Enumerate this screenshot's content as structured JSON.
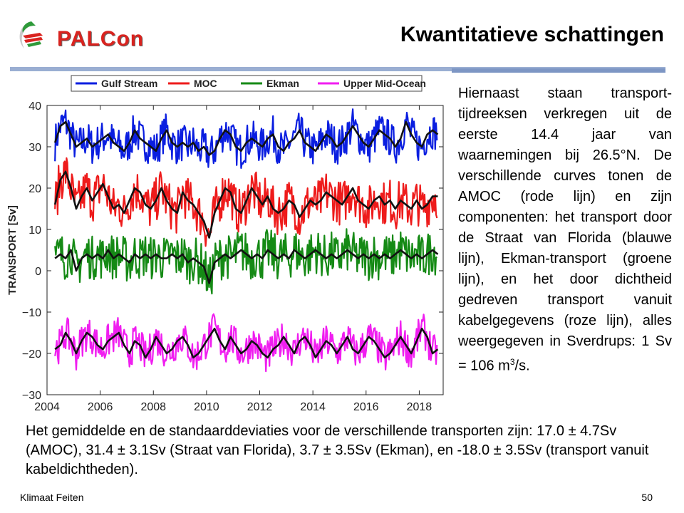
{
  "logo": {
    "text": "PALCon"
  },
  "slide": {
    "title": "Kwantitatieve schattingen",
    "side_text_main": "Hiernaast staan transport-tijdreeksen verkregen uit de eerste 14.4 jaar van waarnemingen bij 26.5°N. De verschillende curves tonen de AMOC (rode lijn) en zijn componenten: het transport door de Straat van Florida (blauwe lijn), Ekman-transport (groene lijn), en het door dichtheid gedreven transport vanuit kabelgegevens (roze lijn), alles weergegeven in Sverdrups: 1 Sv = 106 m",
    "side_text_sup": "3",
    "side_text_end": "/s.",
    "bottom_text": "Het gemiddelde en de standaarddeviaties voor de verschillende transporten zijn: 17.0 ± 4.7Sv (AMOC), 31.4 ± 3.1Sv (Straat van Florida), 3.7 ± 3.5Sv (Ekman), en -18.0 ± 3.5Sv (transport vanuit kabeldichtheden).",
    "footer_left": "Klimaat Feiten",
    "footer_right": "50"
  },
  "chart_data": {
    "type": "line",
    "ylabel": "TRANSPORT [Sv]",
    "xlabel": "",
    "xlim": [
      2004,
      2018.9
    ],
    "ylim": [
      -30,
      40
    ],
    "xticks": [
      "2004",
      "2006",
      "2008",
      "2010",
      "2012",
      "2014",
      "2016",
      "2018"
    ],
    "yticks": [
      "40",
      "30",
      "20",
      "10",
      "0",
      "−10",
      "−20",
      "−30"
    ],
    "legend_position": "top",
    "series": [
      {
        "name": "Gulf Stream",
        "color": "#0a1ee0",
        "x": [
          2004.3,
          2004.5,
          2004.7,
          2004.9,
          2005.1,
          2005.3,
          2005.5,
          2005.7,
          2005.9,
          2006.1,
          2006.3,
          2006.5,
          2006.7,
          2006.9,
          2007.1,
          2007.3,
          2007.5,
          2007.7,
          2007.9,
          2008.1,
          2008.3,
          2008.5,
          2008.7,
          2008.9,
          2009.1,
          2009.3,
          2009.5,
          2009.7,
          2009.9,
          2010.1,
          2010.3,
          2010.5,
          2010.7,
          2010.9,
          2011.1,
          2011.3,
          2011.5,
          2011.7,
          2011.9,
          2012.1,
          2012.3,
          2012.5,
          2012.7,
          2012.9,
          2013.1,
          2013.3,
          2013.5,
          2013.7,
          2013.9,
          2014.1,
          2014.3,
          2014.5,
          2014.7,
          2014.9,
          2015.1,
          2015.3,
          2015.5,
          2015.7,
          2015.9,
          2016.1,
          2016.3,
          2016.5,
          2016.7,
          2016.9,
          2017.1,
          2017.3,
          2017.5,
          2017.7,
          2017.9,
          2018.1,
          2018.3,
          2018.5,
          2018.7
        ],
        "values": [
          31,
          35,
          36,
          33,
          30,
          31,
          32,
          30,
          31,
          32,
          33,
          31,
          30,
          29,
          31,
          34,
          32,
          31,
          30,
          29,
          32,
          34,
          31,
          30,
          31,
          30,
          31,
          29,
          30,
          28,
          29,
          32,
          34,
          33,
          30,
          29,
          31,
          32,
          31,
          30,
          32,
          33,
          30,
          29,
          31,
          32,
          34,
          31,
          30,
          29,
          31,
          33,
          32,
          30,
          31,
          33,
          35,
          33,
          31,
          30,
          32,
          34,
          33,
          32,
          30,
          32,
          36,
          33,
          31,
          30,
          33,
          34,
          33
        ]
      },
      {
        "name": "MOC",
        "color": "#ee1b1b",
        "x": [
          2004.3,
          2004.5,
          2004.7,
          2004.9,
          2005.1,
          2005.3,
          2005.5,
          2005.7,
          2005.9,
          2006.1,
          2006.3,
          2006.5,
          2006.7,
          2006.9,
          2007.1,
          2007.3,
          2007.5,
          2007.7,
          2007.9,
          2008.1,
          2008.3,
          2008.5,
          2008.7,
          2008.9,
          2009.1,
          2009.3,
          2009.5,
          2009.7,
          2009.9,
          2010.1,
          2010.3,
          2010.5,
          2010.7,
          2010.9,
          2011.1,
          2011.3,
          2011.5,
          2011.7,
          2011.9,
          2012.1,
          2012.3,
          2012.5,
          2012.7,
          2012.9,
          2013.1,
          2013.3,
          2013.5,
          2013.7,
          2013.9,
          2014.1,
          2014.3,
          2014.5,
          2014.7,
          2014.9,
          2015.1,
          2015.3,
          2015.5,
          2015.7,
          2015.9,
          2016.1,
          2016.3,
          2016.5,
          2016.7,
          2016.9,
          2017.1,
          2017.3,
          2017.5,
          2017.7,
          2017.9,
          2018.1,
          2018.3,
          2018.5,
          2018.7
        ],
        "values": [
          16,
          22,
          24,
          20,
          15,
          18,
          20,
          17,
          19,
          21,
          18,
          15,
          16,
          14,
          17,
          20,
          19,
          16,
          15,
          17,
          20,
          17,
          15,
          14,
          19,
          17,
          16,
          14,
          12,
          8,
          14,
          17,
          20,
          19,
          15,
          14,
          17,
          20,
          18,
          16,
          18,
          15,
          14,
          15,
          17,
          16,
          13,
          15,
          17,
          16,
          17,
          19,
          18,
          17,
          16,
          18,
          20,
          17,
          16,
          15,
          17,
          18,
          16,
          17,
          15,
          17,
          16,
          15,
          17,
          15,
          16,
          18,
          18
        ]
      },
      {
        "name": "Ekman",
        "color": "#158a15",
        "x": [
          2004.3,
          2004.5,
          2004.7,
          2004.9,
          2005.1,
          2005.3,
          2005.5,
          2005.7,
          2005.9,
          2006.1,
          2006.3,
          2006.5,
          2006.7,
          2006.9,
          2007.1,
          2007.3,
          2007.5,
          2007.7,
          2007.9,
          2008.1,
          2008.3,
          2008.5,
          2008.7,
          2008.9,
          2009.1,
          2009.3,
          2009.5,
          2009.7,
          2009.9,
          2010.1,
          2010.3,
          2010.5,
          2010.7,
          2010.9,
          2011.1,
          2011.3,
          2011.5,
          2011.7,
          2011.9,
          2012.1,
          2012.3,
          2012.5,
          2012.7,
          2012.9,
          2013.1,
          2013.3,
          2013.5,
          2013.7,
          2013.9,
          2014.1,
          2014.3,
          2014.5,
          2014.7,
          2014.9,
          2015.1,
          2015.3,
          2015.5,
          2015.7,
          2015.9,
          2016.1,
          2016.3,
          2016.5,
          2016.7,
          2016.9,
          2017.1,
          2017.3,
          2017.5,
          2017.7,
          2017.9,
          2018.1,
          2018.3,
          2018.5,
          2018.7
        ],
        "values": [
          3,
          4,
          3,
          5,
          0,
          3,
          4,
          3,
          4,
          3,
          5,
          3,
          4,
          3,
          2,
          4,
          3,
          4,
          3,
          4,
          3,
          3,
          4,
          3,
          4,
          2,
          3,
          2,
          1,
          -3,
          2,
          3,
          4,
          3,
          4,
          5,
          4,
          3,
          4,
          3,
          5,
          4,
          3,
          4,
          3,
          5,
          4,
          3,
          4,
          5,
          4,
          3,
          4,
          3,
          4,
          5,
          4,
          3,
          4,
          3,
          4,
          3,
          4,
          3,
          4,
          5,
          4,
          3,
          4,
          3,
          4,
          5,
          4
        ]
      },
      {
        "name": "Upper Mid-Ocean",
        "color": "#f01ef0",
        "x": [
          2004.3,
          2004.5,
          2004.7,
          2004.9,
          2005.1,
          2005.3,
          2005.5,
          2005.7,
          2005.9,
          2006.1,
          2006.3,
          2006.5,
          2006.7,
          2006.9,
          2007.1,
          2007.3,
          2007.5,
          2007.7,
          2007.9,
          2008.1,
          2008.3,
          2008.5,
          2008.7,
          2008.9,
          2009.1,
          2009.3,
          2009.5,
          2009.7,
          2009.9,
          2010.1,
          2010.3,
          2010.5,
          2010.7,
          2010.9,
          2011.1,
          2011.3,
          2011.5,
          2011.7,
          2011.9,
          2012.1,
          2012.3,
          2012.5,
          2012.7,
          2012.9,
          2013.1,
          2013.3,
          2013.5,
          2013.7,
          2013.9,
          2014.1,
          2014.3,
          2014.5,
          2014.7,
          2014.9,
          2015.1,
          2015.3,
          2015.5,
          2015.7,
          2015.9,
          2016.1,
          2016.3,
          2016.5,
          2016.7,
          2016.9,
          2017.1,
          2017.3,
          2017.5,
          2017.7,
          2017.9,
          2018.1,
          2018.3,
          2018.5,
          2018.7
        ],
        "values": [
          -19,
          -18,
          -15,
          -17,
          -20,
          -17,
          -15,
          -16,
          -18,
          -19,
          -17,
          -16,
          -15,
          -18,
          -20,
          -17,
          -18,
          -21,
          -19,
          -16,
          -18,
          -20,
          -19,
          -17,
          -16,
          -18,
          -21,
          -20,
          -18,
          -16,
          -14,
          -17,
          -19,
          -16,
          -18,
          -20,
          -19,
          -17,
          -18,
          -20,
          -21,
          -19,
          -18,
          -16,
          -18,
          -20,
          -17,
          -16,
          -18,
          -21,
          -19,
          -17,
          -18,
          -20,
          -18,
          -16,
          -19,
          -20,
          -18,
          -16,
          -17,
          -19,
          -21,
          -20,
          -18,
          -16,
          -18,
          -20,
          -17,
          -14,
          -16,
          -20,
          -19
        ]
      }
    ]
  }
}
